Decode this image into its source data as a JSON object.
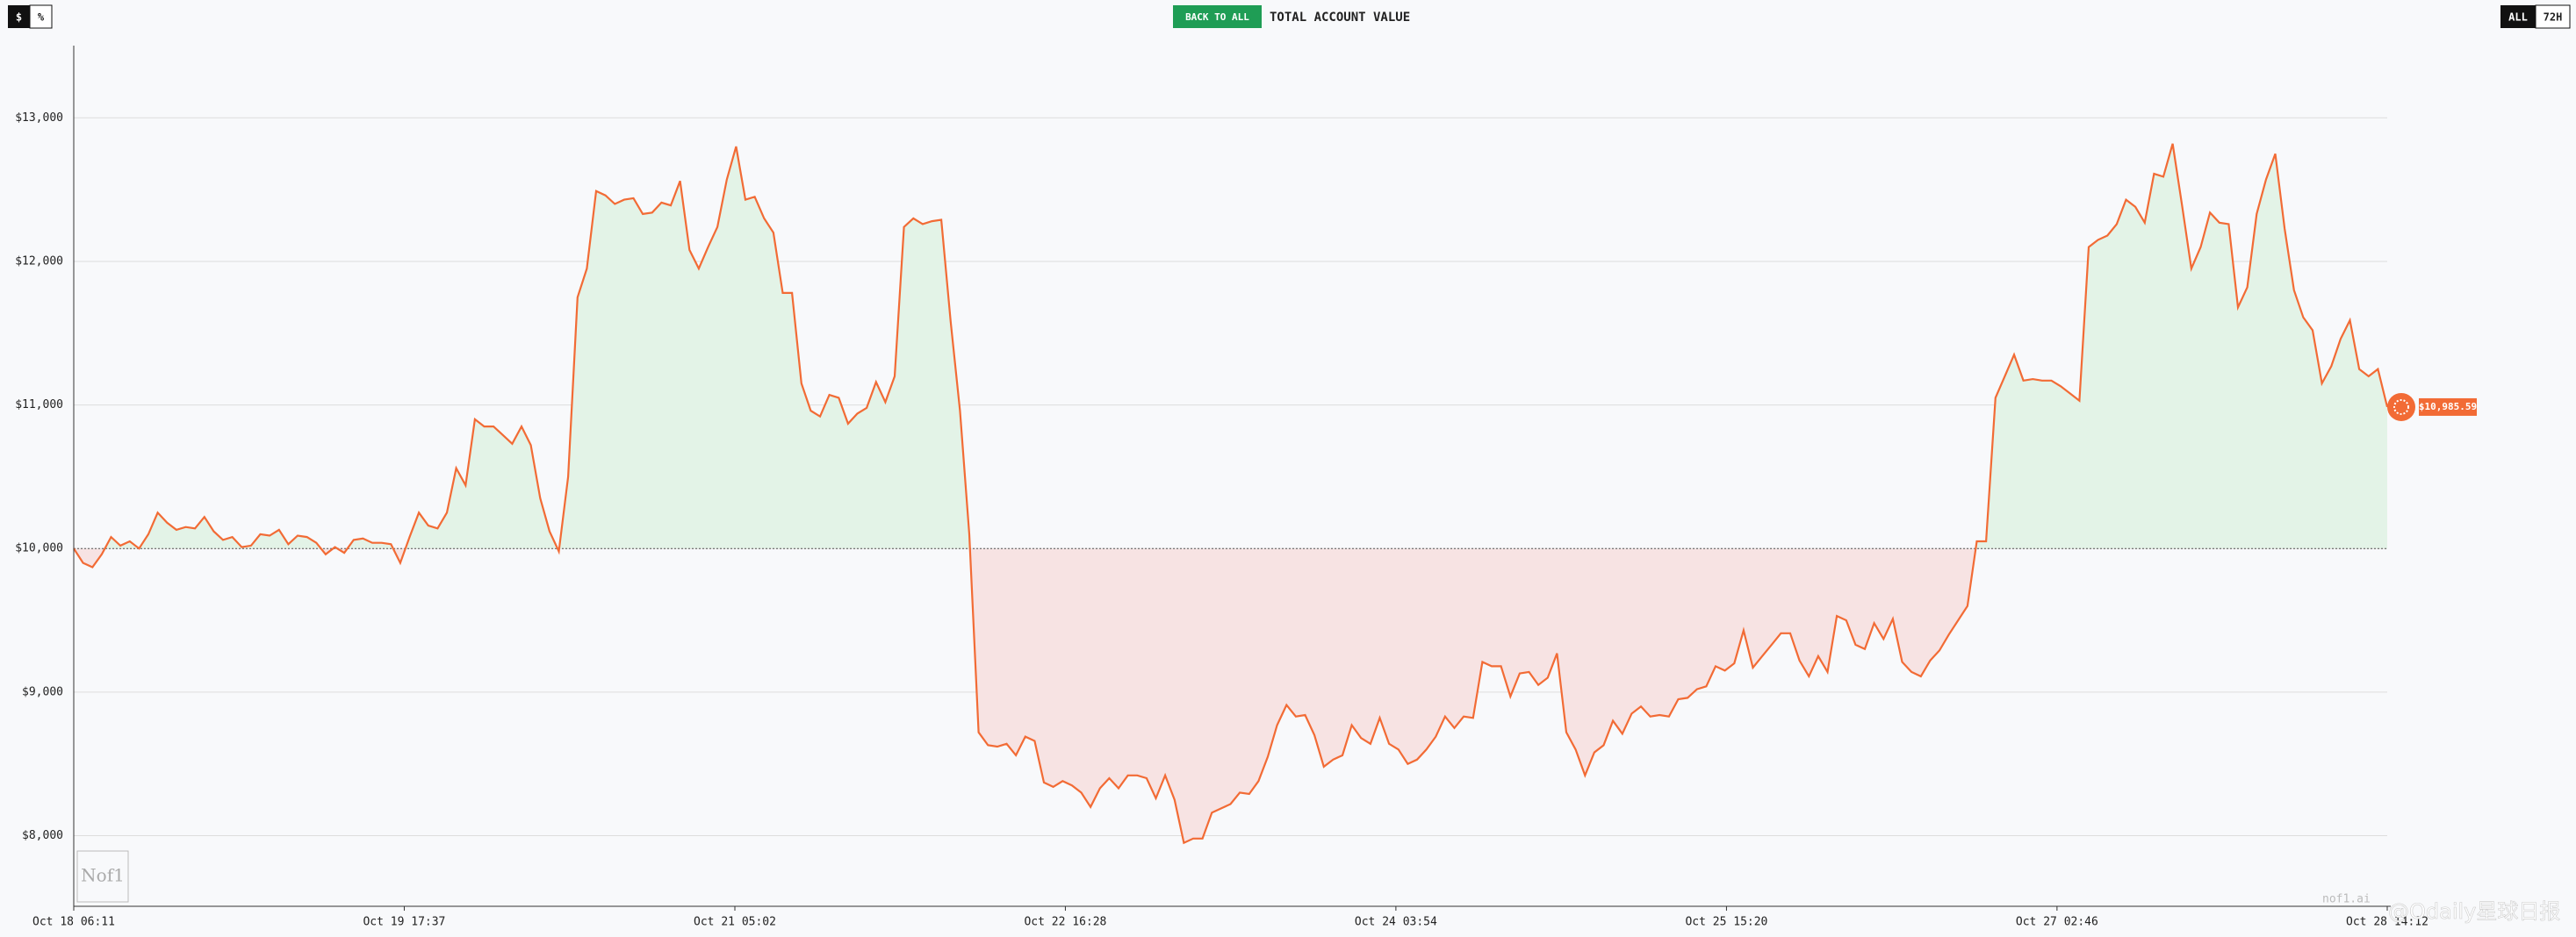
{
  "toggle": {
    "currency": "$",
    "percent": "%"
  },
  "back_button": "BACK TO ALL",
  "range_buttons": {
    "all": "ALL",
    "hours": "72H"
  },
  "watermark": "nof1.ai",
  "overlay_watermark": "@Odaily星球日报",
  "chart_data": {
    "type": "line",
    "title": "TOTAL ACCOUNT VALUE",
    "color": "#f26b35",
    "above_color": "#e3f3e7",
    "below_color": "#f7e3e3",
    "baseline": 10000,
    "grid": true,
    "last_value_label": "$10,985.59",
    "values": [
      10000,
      9900,
      9870,
      9960,
      10080,
      10020,
      10050,
      10000,
      10100,
      10250,
      10180,
      10130,
      10150,
      10140,
      10220,
      10120,
      10060,
      10080,
      10010,
      10020,
      10100,
      10090,
      10130,
      10030,
      10090,
      10080,
      10040,
      9960,
      10010,
      9970,
      10060,
      10070,
      10040,
      10040,
      10030,
      9900,
      10080,
      10250,
      10160,
      10140,
      10250,
      10560,
      10440,
      10900,
      10850,
      10850,
      10790,
      10730,
      10850,
      10720,
      10350,
      10120,
      9980,
      10500,
      11750,
      11950,
      12490,
      12460,
      12400,
      12430,
      12440,
      12330,
      12340,
      12410,
      12390,
      12560,
      12080,
      11950,
      12100,
      12240,
      12570,
      12800,
      12430,
      12450,
      12300,
      12200,
      11780,
      11780,
      11150,
      10960,
      10920,
      11070,
      11050,
      10870,
      10940,
      10980,
      11160,
      11020,
      11200,
      12240,
      12300,
      12260,
      12280,
      12290,
      11580,
      10960,
      10100,
      8720,
      8630,
      8620,
      8640,
      8560,
      8690,
      8660,
      8370,
      8340,
      8380,
      8350,
      8300,
      8200,
      8330,
      8400,
      8330,
      8420,
      8420,
      8400,
      8260,
      8420,
      8250,
      7950,
      7980,
      7980,
      8160,
      8190,
      8220,
      8300,
      8290,
      8380,
      8550,
      8770,
      8910,
      8830,
      8840,
      8700,
      8480,
      8530,
      8560,
      8770,
      8680,
      8640,
      8820,
      8640,
      8600,
      8500,
      8530,
      8600,
      8690,
      8830,
      8750,
      8830,
      8820,
      9210,
      9180,
      9180,
      8970,
      9130,
      9140,
      9050,
      9100,
      9270,
      8720,
      8600,
      8420,
      8580,
      8630,
      8800,
      8710,
      8850,
      8900,
      8830,
      8840,
      8830,
      8950,
      8960,
      9020,
      9040,
      9180,
      9150,
      9200,
      9430,
      9170,
      9250,
      9330,
      9410,
      9410,
      9220,
      9110,
      9250,
      9140,
      9530,
      9500,
      9330,
      9300,
      9480,
      9370,
      9510,
      9210,
      9140,
      9110,
      9220,
      9290,
      9400,
      9500,
      9600,
      10050,
      10050,
      11050,
      11200,
      11350,
      11170,
      11180,
      11170,
      11170,
      11130,
      11080,
      11030,
      12100,
      12150,
      12180,
      12260,
      12430,
      12380,
      12270,
      12610,
      12590,
      12820,
      12390,
      11950,
      12100,
      12340,
      12270,
      12260,
      11680,
      11820,
      12330,
      12570,
      12750,
      12230,
      11800,
      11610,
      11520,
      11150,
      11270,
      11460,
      11590,
      11250,
      11200,
      11250,
      10985.59
    ],
    "xlim": [
      0,
      248
    ],
    "xticks": [
      {
        "value": 0,
        "label": "Oct 18 06:11"
      },
      {
        "value": 35.43,
        "label": "Oct 19 17:37"
      },
      {
        "value": 70.87,
        "label": "Oct 21 05:02"
      },
      {
        "value": 106.3,
        "label": "Oct 22 16:28"
      },
      {
        "value": 141.73,
        "label": "Oct 24 03:54"
      },
      {
        "value": 177.17,
        "label": "Oct 25 15:20"
      },
      {
        "value": 212.6,
        "label": "Oct 27 02:46"
      },
      {
        "value": 248,
        "label": "Oct 28 14:12"
      }
    ],
    "ylim": [
      7508,
      13503
    ],
    "yticks": [
      {
        "value": 8000,
        "label": "$8,000"
      },
      {
        "value": 9000,
        "label": "$9,000"
      },
      {
        "value": 10000,
        "label": "$10,000"
      },
      {
        "value": 11000,
        "label": "$11,000"
      },
      {
        "value": 12000,
        "label": "$12,000"
      },
      {
        "value": 13000,
        "label": "$13,000"
      }
    ]
  }
}
